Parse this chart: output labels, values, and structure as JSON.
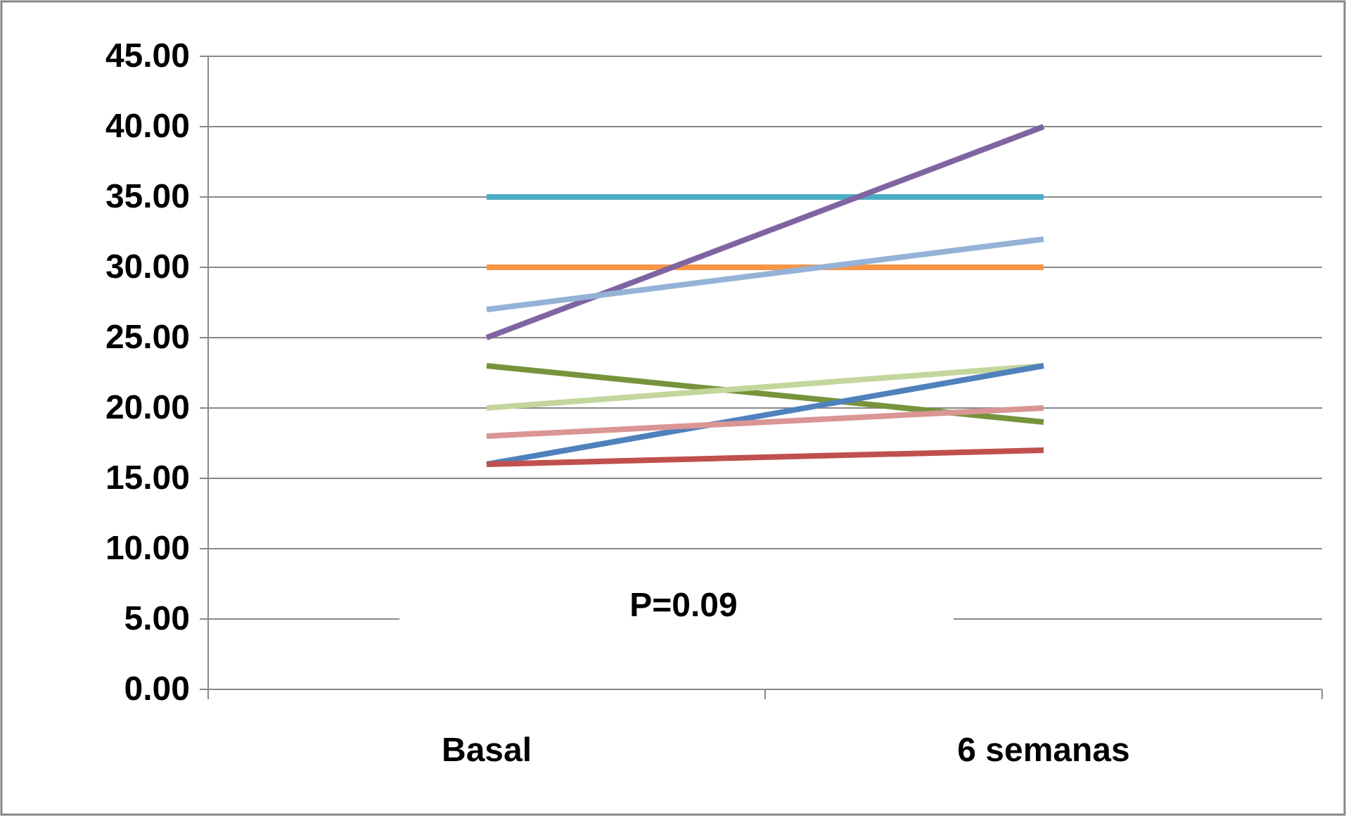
{
  "chart_data": {
    "type": "line",
    "categories": [
      "Basal",
      "6 semanas"
    ],
    "series": [
      {
        "color": "#4bacc6",
        "values": [
          35,
          35
        ]
      },
      {
        "color": "#f79646",
        "values": [
          30,
          30
        ]
      },
      {
        "color": "#8064a2",
        "values": [
          25,
          40
        ]
      },
      {
        "color": "#95b3d7",
        "values": [
          27,
          32
        ]
      },
      {
        "color": "#77933c",
        "values": [
          23,
          19
        ]
      },
      {
        "color": "#c3d69b",
        "values": [
          20,
          23
        ]
      },
      {
        "color": "#4f81bd",
        "values": [
          16,
          23
        ]
      },
      {
        "color": "#d99694",
        "values": [
          18,
          20
        ]
      },
      {
        "color": "#c0504d",
        "values": [
          16,
          17
        ]
      }
    ],
    "ylim": [
      0,
      45
    ],
    "yticks": [
      {
        "value": 0,
        "label": "0.00"
      },
      {
        "value": 5,
        "label": "5.00"
      },
      {
        "value": 10,
        "label": "10.00"
      },
      {
        "value": 15,
        "label": "15.00"
      },
      {
        "value": 20,
        "label": "20.00"
      },
      {
        "value": 25,
        "label": "25.00"
      },
      {
        "value": 30,
        "label": "30.00"
      },
      {
        "value": 35,
        "label": "35.00"
      },
      {
        "value": 40,
        "label": "40.00"
      },
      {
        "value": 45,
        "label": "45.00"
      }
    ],
    "grid": "y",
    "marker": "none",
    "line_style": "solid",
    "annotations": [
      "P=0.09"
    ]
  }
}
